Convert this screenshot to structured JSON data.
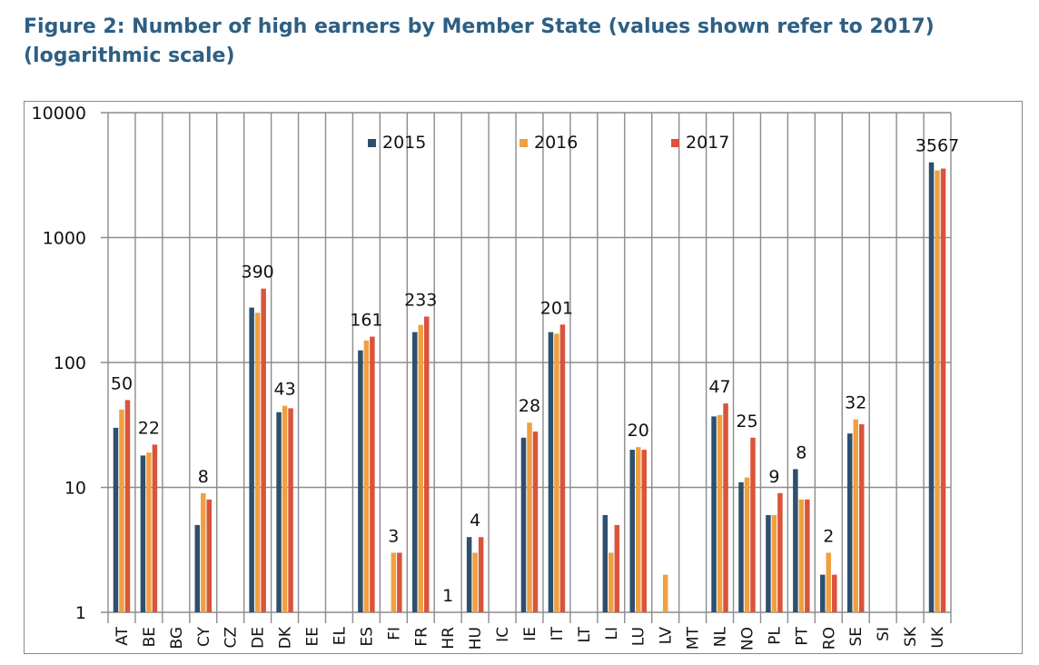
{
  "title": "Figure 2: Number of high earners by Member State (values shown refer to 2017) (logarithmic scale)",
  "colors": {
    "2015": "#2e4f6e",
    "2016": "#f0a040",
    "2017": "#d9543a",
    "grid": "#8c8c8c"
  },
  "chart_data": {
    "type": "bar",
    "scale": "log",
    "ylim": [
      1,
      10000
    ],
    "yticks": [
      "1",
      "10",
      "100",
      "1000",
      "10000"
    ],
    "grid": true,
    "legend_position": "top",
    "categories": [
      "AT",
      "BE",
      "BG",
      "CY",
      "CZ",
      "DE",
      "DK",
      "EE",
      "EL",
      "ES",
      "FI",
      "FR",
      "HR",
      "HU",
      "IC",
      "IE",
      "IT",
      "LT",
      "LI",
      "LU",
      "LV",
      "MT",
      "NL",
      "NO",
      "PL",
      "PT",
      "RO",
      "SE",
      "SI",
      "SK",
      "UK"
    ],
    "series": [
      {
        "name": "2015",
        "values": [
          30,
          18,
          null,
          5,
          null,
          275,
          40,
          null,
          null,
          125,
          null,
          175,
          null,
          4,
          null,
          25,
          175,
          null,
          6,
          20,
          null,
          null,
          37,
          11,
          6,
          14,
          2,
          27,
          null,
          null,
          4000
        ]
      },
      {
        "name": "2016",
        "values": [
          42,
          19,
          null,
          9,
          null,
          250,
          45,
          null,
          null,
          150,
          3,
          200,
          null,
          3,
          null,
          33,
          170,
          null,
          3,
          21,
          2,
          null,
          38,
          12,
          6,
          8,
          3,
          35,
          null,
          null,
          3450
        ]
      },
      {
        "name": "2017",
        "values": [
          50,
          22,
          null,
          8,
          null,
          390,
          43,
          null,
          null,
          161,
          3,
          233,
          1,
          4,
          null,
          28,
          201,
          null,
          5,
          20,
          null,
          null,
          47,
          25,
          9,
          8,
          2,
          32,
          null,
          null,
          3567
        ]
      }
    ],
    "data_labels": [
      {
        "category": "AT",
        "text": "50"
      },
      {
        "category": "BE",
        "text": "22"
      },
      {
        "category": "CY",
        "text": "8"
      },
      {
        "category": "DE",
        "text": "390"
      },
      {
        "category": "DK",
        "text": "43"
      },
      {
        "category": "ES",
        "text": "161"
      },
      {
        "category": "FI",
        "text": "3"
      },
      {
        "category": "FR",
        "text": "233"
      },
      {
        "category": "HR",
        "text": "1"
      },
      {
        "category": "HU",
        "text": "4"
      },
      {
        "category": "IE",
        "text": "28"
      },
      {
        "category": "IT",
        "text": "201"
      },
      {
        "category": "LU",
        "text": "20"
      },
      {
        "category": "NL",
        "text": "47"
      },
      {
        "category": "NO",
        "text": "25"
      },
      {
        "category": "PL",
        "text": "9"
      },
      {
        "category": "PT",
        "text": "8"
      },
      {
        "category": "RO",
        "text": "2"
      },
      {
        "category": "SE",
        "text": "32"
      },
      {
        "category": "UK",
        "text": "3567"
      }
    ]
  }
}
